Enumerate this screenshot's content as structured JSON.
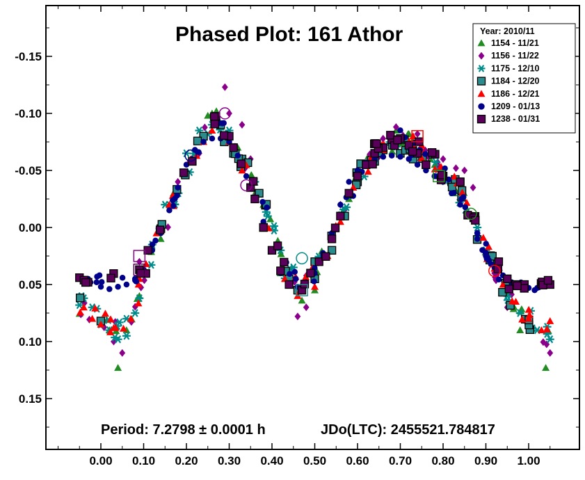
{
  "chart_data": {
    "type": "scatter",
    "title": "Phased Plot: 161 Athor",
    "period_text": "Period: 7.2798 ± 0.0001 h",
    "epoch_text": "JDo(LTC): 2455521.784817",
    "xlim": [
      -0.12,
      1.12
    ],
    "ylim": [
      0.2,
      -0.2
    ],
    "y_inverted": true,
    "x_ticks": [
      "0.00",
      "0.10",
      "0.20",
      "0.30",
      "0.40",
      "0.50",
      "0.60",
      "0.70",
      "0.80",
      "0.90",
      "1.00"
    ],
    "x_tick_values": [
      0,
      0.1,
      0.2,
      0.3,
      0.4,
      0.5,
      0.6,
      0.7,
      0.8,
      0.9,
      1.0
    ],
    "y_ticks": [
      "-0.15",
      "-0.10",
      "-0.05",
      "0.00",
      "0.05",
      "0.10",
      "0.15"
    ],
    "y_tick_values": [
      -0.15,
      -0.1,
      -0.05,
      0,
      0.05,
      0.1,
      0.15
    ],
    "legend": {
      "title": "Year: 2010/11",
      "placement": "top-right"
    },
    "curve_shape": [
      [
        -0.05,
        0.068
      ],
      [
        0.0,
        0.08
      ],
      [
        0.04,
        0.094
      ],
      [
        0.08,
        0.07
      ],
      [
        0.1,
        0.04
      ],
      [
        0.15,
        -0.002
      ],
      [
        0.2,
        -0.05
      ],
      [
        0.24,
        -0.082
      ],
      [
        0.27,
        -0.09
      ],
      [
        0.3,
        -0.078
      ],
      [
        0.35,
        -0.045
      ],
      [
        0.4,
        0.0
      ],
      [
        0.43,
        0.038
      ],
      [
        0.47,
        0.052
      ],
      [
        0.5,
        0.04
      ],
      [
        0.55,
        0.0
      ],
      [
        0.6,
        -0.045
      ],
      [
        0.65,
        -0.07
      ],
      [
        0.7,
        -0.077
      ],
      [
        0.75,
        -0.068
      ],
      [
        0.8,
        -0.048
      ],
      [
        0.85,
        -0.025
      ],
      [
        0.9,
        0.02
      ],
      [
        0.95,
        0.06
      ],
      [
        1.0,
        0.08
      ],
      [
        1.05,
        0.097
      ]
    ],
    "series": [
      {
        "name": "1154 - 11/21",
        "marker": "triangle",
        "color": "#228b22",
        "points": [
          [
            0.04,
            0.123
          ],
          [
            0.02,
            0.09
          ],
          [
            0.06,
            0.09
          ],
          [
            0.09,
            0.06
          ],
          [
            0.17,
            -0.03
          ],
          [
            0.22,
            -0.065
          ],
          [
            0.26,
            -0.1
          ],
          [
            0.27,
            -0.102
          ],
          [
            0.25,
            -0.098
          ],
          [
            0.32,
            -0.07
          ],
          [
            0.38,
            -0.02
          ],
          [
            0.42,
            0.04
          ],
          [
            0.47,
            0.064
          ],
          [
            0.5,
            0.055
          ],
          [
            0.58,
            -0.025
          ],
          [
            0.63,
            -0.06
          ],
          [
            0.69,
            -0.085
          ],
          [
            0.72,
            -0.082
          ],
          [
            0.77,
            -0.06
          ],
          [
            0.79,
            -0.045
          ],
          [
            0.83,
            -0.032
          ],
          [
            0.98,
            0.09
          ],
          [
            1.04,
            0.123
          ],
          [
            0.14,
            0.01
          ]
        ]
      },
      {
        "name": "1156 - 11/22",
        "marker": "diamond",
        "color": "#8b008b",
        "points": [
          [
            0.29,
            -0.123
          ],
          [
            0.3,
            -0.1
          ],
          [
            0.33,
            -0.09
          ],
          [
            0.35,
            -0.06
          ],
          [
            0.46,
            0.078
          ],
          [
            0.48,
            0.07
          ],
          [
            0.05,
            0.11
          ],
          [
            0.03,
            0.1
          ],
          [
            0.69,
            -0.088
          ],
          [
            0.74,
            -0.082
          ],
          [
            0.8,
            -0.06
          ],
          [
            0.83,
            -0.052
          ],
          [
            0.85,
            -0.05
          ],
          [
            0.87,
            -0.035
          ],
          [
            1.05,
            0.11
          ],
          [
            0.95,
            0.07
          ],
          [
            0.92,
            0.04
          ],
          [
            0.18,
            -0.04
          ],
          [
            0.23,
            -0.065
          ],
          [
            0.3,
            -0.08
          ],
          [
            0.56,
            -0.02
          ],
          [
            0.6,
            -0.05
          ],
          [
            0.65,
            -0.07
          ],
          [
            0.09,
            0.03
          ]
        ]
      },
      {
        "name": "1175 - 12/10",
        "marker": "asterisk",
        "color": "#008b8b",
        "points": [
          [
            -0.05,
            0.068
          ],
          [
            -0.04,
            0.062
          ],
          [
            -0.02,
            0.07
          ],
          [
            0.0,
            0.085
          ],
          [
            0.02,
            0.09
          ],
          [
            0.04,
            0.098
          ],
          [
            0.06,
            0.095
          ],
          [
            0.08,
            0.075
          ],
          [
            0.09,
            0.062
          ],
          [
            0.12,
            0.015
          ],
          [
            0.15,
            -0.02
          ],
          [
            0.2,
            -0.065
          ],
          [
            0.23,
            -0.085
          ],
          [
            0.26,
            -0.09
          ],
          [
            0.28,
            -0.09
          ],
          [
            0.3,
            -0.085
          ],
          [
            0.33,
            -0.06
          ],
          [
            0.36,
            -0.04
          ],
          [
            0.39,
            -0.01
          ],
          [
            0.42,
            0.02
          ],
          [
            0.45,
            0.035
          ],
          [
            0.5,
            0.045
          ],
          [
            0.88,
            0.0
          ],
          [
            0.9,
            0.02
          ],
          [
            0.92,
            0.03
          ],
          [
            0.95,
            0.06
          ],
          [
            0.98,
            0.075
          ],
          [
            1.0,
            0.085
          ],
          [
            1.02,
            0.09
          ],
          [
            1.05,
            0.098
          ],
          [
            0.06,
            0.08
          ],
          [
            0.74,
            -0.065
          ]
        ]
      },
      {
        "name": "1184 - 12/20",
        "marker": "square",
        "color": "#2a8c8c",
        "points": [
          [
            0.28,
            -0.09
          ],
          [
            0.31,
            -0.065
          ],
          [
            0.33,
            -0.06
          ],
          [
            0.37,
            -0.03
          ],
          [
            0.38,
            0.0
          ],
          [
            0.44,
            0.045
          ],
          [
            0.46,
            0.055
          ],
          [
            0.5,
            0.045
          ],
          [
            0.54,
            0.02
          ],
          [
            0.57,
            -0.01
          ],
          [
            0.6,
            -0.04
          ],
          [
            0.64,
            -0.058
          ],
          [
            0.66,
            -0.068
          ],
          [
            0.7,
            -0.065
          ],
          [
            0.73,
            -0.06
          ],
          [
            0.76,
            -0.055
          ],
          [
            0.8,
            -0.045
          ],
          [
            0.82,
            -0.04
          ],
          [
            0.84,
            -0.04
          ],
          [
            0.24,
            -0.08
          ],
          [
            0.5,
            0.03
          ]
        ]
      },
      {
        "name": "1186 - 12/21",
        "marker": "triangle",
        "color": "#ff0000",
        "points": [
          [
            -0.04,
            0.07
          ],
          [
            -0.02,
            0.08
          ],
          [
            0.0,
            0.085
          ],
          [
            0.03,
            0.088
          ],
          [
            0.07,
            0.08
          ],
          [
            0.09,
            0.045
          ],
          [
            0.13,
            0.005
          ],
          [
            0.16,
            -0.02
          ],
          [
            0.21,
            -0.06
          ],
          [
            0.24,
            -0.075
          ],
          [
            0.26,
            -0.085
          ],
          [
            0.3,
            -0.075
          ],
          [
            0.33,
            -0.05
          ],
          [
            0.4,
            0.02
          ],
          [
            0.43,
            0.045
          ],
          [
            0.46,
            0.06
          ],
          [
            0.5,
            0.052
          ],
          [
            0.53,
            0.025
          ],
          [
            0.56,
            -0.005
          ],
          [
            0.59,
            -0.035
          ],
          [
            0.63,
            -0.06
          ],
          [
            0.66,
            -0.068
          ],
          [
            0.73,
            -0.08
          ],
          [
            0.75,
            -0.072
          ],
          [
            0.92,
            0.036
          ],
          [
            0.94,
            0.05
          ],
          [
            0.97,
            0.065
          ],
          [
            1.0,
            0.08
          ],
          [
            1.03,
            0.09
          ],
          [
            1.05,
            0.082
          ]
        ]
      },
      {
        "name": "1209 - 01/13",
        "marker": "circle",
        "color": "#00008b",
        "points": [
          [
            -0.05,
            0.043
          ],
          [
            -0.03,
            0.045
          ],
          [
            -0.01,
            0.048
          ],
          [
            0.0,
            0.052
          ],
          [
            0.02,
            0.054
          ],
          [
            0.04,
            0.052
          ],
          [
            0.06,
            0.05
          ],
          [
            0.08,
            0.045
          ],
          [
            0.1,
            0.037
          ],
          [
            0.12,
            0.02
          ],
          [
            0.14,
            0.005
          ],
          [
            0.16,
            -0.015
          ],
          [
            0.18,
            -0.035
          ],
          [
            0.2,
            -0.055
          ],
          [
            0.22,
            -0.068
          ],
          [
            0.24,
            -0.075
          ],
          [
            0.26,
            -0.078
          ],
          [
            0.28,
            -0.078
          ],
          [
            0.3,
            -0.075
          ],
          [
            0.32,
            -0.063
          ],
          [
            0.34,
            -0.045
          ],
          [
            0.36,
            -0.025
          ],
          [
            0.38,
            -0.005
          ],
          [
            0.4,
            0.02
          ],
          [
            0.42,
            0.04
          ],
          [
            0.44,
            0.05
          ],
          [
            0.46,
            0.052
          ],
          [
            0.48,
            0.048
          ],
          [
            0.5,
            0.04
          ],
          [
            0.52,
            0.025
          ],
          [
            0.54,
            0.005
          ],
          [
            0.56,
            -0.02
          ],
          [
            0.58,
            -0.04
          ],
          [
            0.6,
            -0.05
          ],
          [
            0.62,
            -0.057
          ],
          [
            0.64,
            -0.06
          ],
          [
            0.66,
            -0.062
          ],
          [
            0.68,
            -0.063
          ],
          [
            0.7,
            -0.062
          ],
          [
            0.72,
            -0.06
          ],
          [
            0.74,
            -0.055
          ],
          [
            0.76,
            -0.05
          ],
          [
            0.78,
            -0.045
          ],
          [
            0.8,
            -0.04
          ],
          [
            0.82,
            -0.03
          ],
          [
            0.84,
            -0.02
          ],
          [
            0.86,
            -0.01
          ],
          [
            0.88,
            0.01
          ],
          [
            0.9,
            0.025
          ],
          [
            0.92,
            0.035
          ],
          [
            0.94,
            0.042
          ],
          [
            0.96,
            0.048
          ],
          [
            0.98,
            0.052
          ],
          [
            1.0,
            0.053
          ],
          [
            1.02,
            0.053
          ],
          [
            1.04,
            0.05
          ]
        ]
      },
      {
        "name": "1238 - 01/31",
        "marker": "square",
        "color": "#5a005a",
        "points": [
          [
            -0.05,
            0.044
          ],
          [
            -0.03,
            0.048
          ],
          [
            0.09,
            0.037
          ],
          [
            0.11,
            0.02
          ],
          [
            0.3,
            -0.08
          ],
          [
            0.31,
            -0.07
          ],
          [
            0.35,
            -0.035
          ],
          [
            0.36,
            -0.025
          ],
          [
            0.38,
            0.0
          ],
          [
            0.4,
            0.02
          ],
          [
            0.42,
            0.038
          ],
          [
            0.44,
            0.05
          ],
          [
            0.47,
            0.055
          ],
          [
            0.49,
            0.04
          ],
          [
            0.51,
            0.03
          ],
          [
            0.54,
            0.01
          ],
          [
            0.56,
            -0.01
          ],
          [
            0.58,
            -0.03
          ],
          [
            0.6,
            -0.045
          ],
          [
            0.62,
            -0.055
          ],
          [
            0.64,
            -0.065
          ],
          [
            0.66,
            -0.07
          ],
          [
            0.68,
            -0.077
          ],
          [
            0.7,
            -0.078
          ],
          [
            0.72,
            -0.072
          ],
          [
            0.74,
            -0.065
          ],
          [
            0.76,
            -0.055
          ],
          [
            0.8,
            -0.045
          ],
          [
            0.84,
            -0.04
          ],
          [
            0.93,
            0.03
          ],
          [
            0.95,
            0.045
          ],
          [
            0.97,
            0.05
          ],
          [
            0.99,
            0.05
          ],
          [
            1.05,
            0.05
          ]
        ]
      }
    ],
    "open_circles": [
      {
        "x": 0.21,
        "y": -0.063,
        "color": "#00008b"
      },
      {
        "x": 0.29,
        "y": -0.1,
        "color": "#8b008b"
      },
      {
        "x": 0.34,
        "y": -0.037,
        "color": "#8b008b"
      },
      {
        "x": 0.47,
        "y": 0.027,
        "color": "#008b8b"
      },
      {
        "x": 0.865,
        "y": -0.012,
        "color": "#228b22"
      },
      {
        "x": 0.92,
        "y": 0.038,
        "color": "#ff0000"
      }
    ],
    "open_squares": [
      {
        "x": 0.09,
        "y": 0.037,
        "color": "#5a005a"
      },
      {
        "x": 0.09,
        "y": 0.025,
        "color": "#8b008b"
      },
      {
        "x": 0.47,
        "y": 0.055,
        "color": "#2a8c8c"
      },
      {
        "x": 0.74,
        "y": -0.08,
        "color": "#ff0000"
      },
      {
        "x": 0.79,
        "y": -0.045,
        "color": "#228b22"
      }
    ]
  }
}
